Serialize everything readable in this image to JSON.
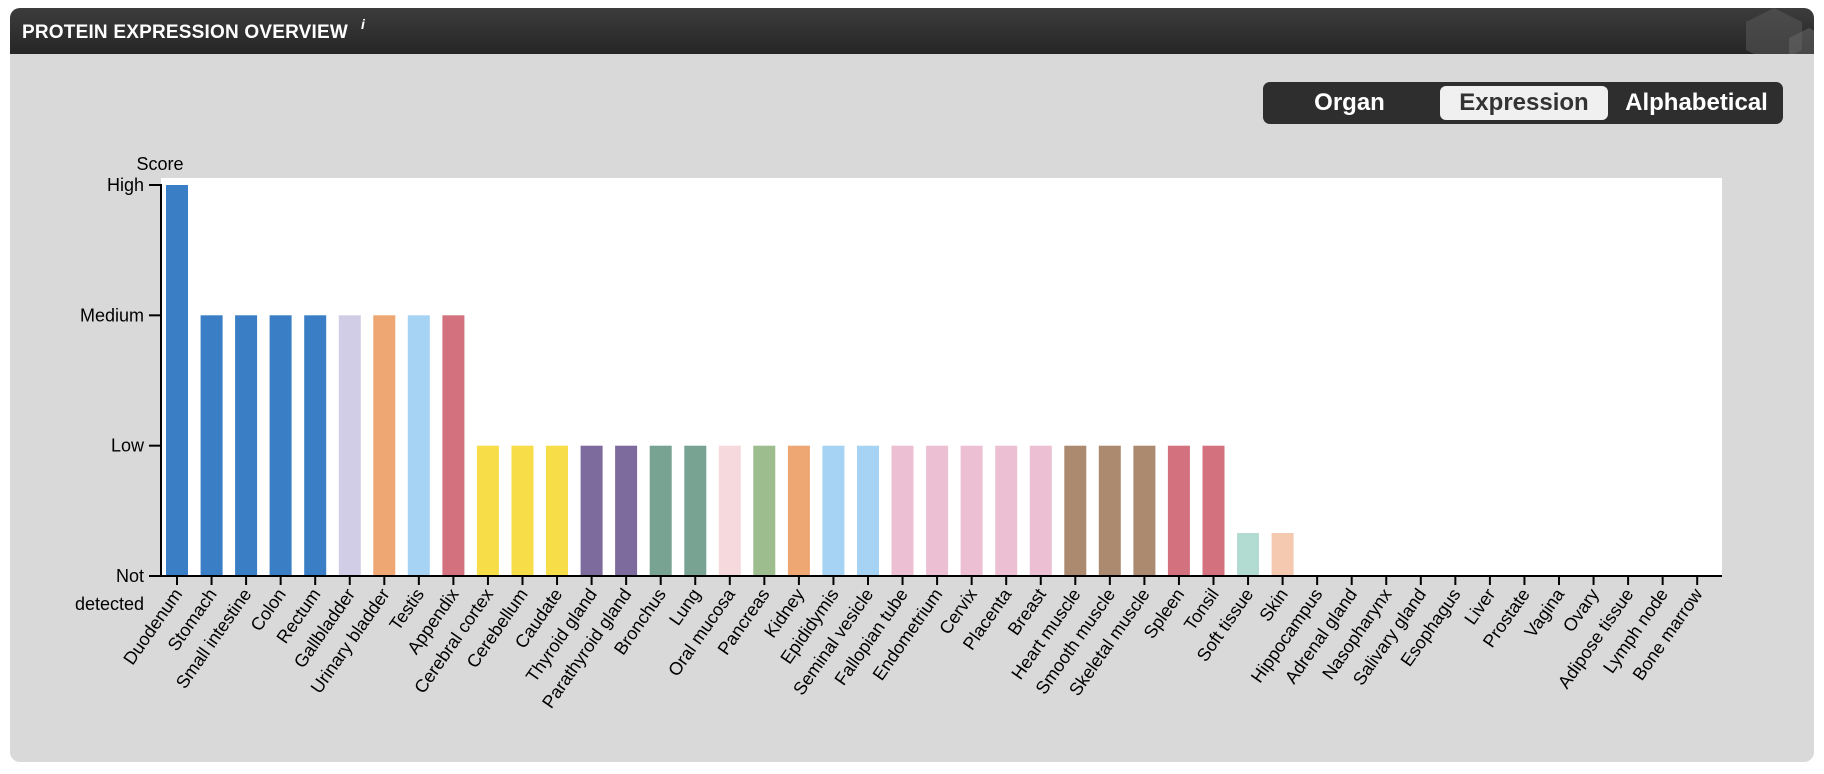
{
  "header": {
    "title": "PROTEIN EXPRESSION OVERVIEW",
    "info_icon": "i"
  },
  "sort_toggle": {
    "options": [
      "Organ",
      "Expression",
      "Alphabetical"
    ],
    "selected": "Expression"
  },
  "chart_data": {
    "type": "bar",
    "ylabel": "Score",
    "yticks": [
      "High",
      "Medium",
      "Low",
      "Not detected"
    ],
    "ylevels": {
      "High": 3,
      "Medium": 2,
      "Low": 1,
      "Not detected": 0
    },
    "ylim": [
      0,
      3
    ],
    "categories": [
      "Duodenum",
      "Stomach",
      "Small intestine",
      "Colon",
      "Rectum",
      "Gallbladder",
      "Urinary bladder",
      "Testis",
      "Appendix",
      "Cerebral cortex",
      "Cerebellum",
      "Caudate",
      "Thyroid gland",
      "Parathyroid gland",
      "Bronchus",
      "Lung",
      "Oral mucosa",
      "Pancreas",
      "Kidney",
      "Epididymis",
      "Seminal vesicle",
      "Fallopian tube",
      "Endometrium",
      "Cervix",
      "Placenta",
      "Breast",
      "Heart muscle",
      "Smooth muscle",
      "Skeletal muscle",
      "Spleen",
      "Tonsil",
      "Soft tissue",
      "Skin",
      "Hippocampus",
      "Adrenal gland",
      "Nasopharynx",
      "Salivary gland",
      "Esophagus",
      "Liver",
      "Prostate",
      "Vagina",
      "Ovary",
      "Adipose tissue",
      "Lymph node",
      "Bone marrow"
    ],
    "values": [
      3,
      2,
      2,
      2,
      2,
      2,
      2,
      2,
      2,
      1,
      1,
      1,
      1,
      1,
      1,
      1,
      1,
      1,
      1,
      1,
      1,
      1,
      1,
      1,
      1,
      1,
      1,
      1,
      1,
      1,
      1,
      0.33,
      0.33,
      0,
      0,
      0,
      0,
      0,
      0,
      0,
      0,
      0,
      0,
      0,
      0
    ],
    "colors": [
      "#3a7ec6",
      "#3a7ec6",
      "#3a7ec6",
      "#3a7ec6",
      "#3a7ec6",
      "#d2cde6",
      "#eea672",
      "#a6d3f3",
      "#d3717f",
      "#f7de49",
      "#f7de49",
      "#f7de49",
      "#7d6b9d",
      "#7d6b9d",
      "#78a393",
      "#78a393",
      "#f5d9dc",
      "#9dbd8e",
      "#eea672",
      "#a6d3f3",
      "#a6d3f3",
      "#edbfd3",
      "#edbfd3",
      "#edbfd3",
      "#edbfd3",
      "#edbfd3",
      "#ac8a70",
      "#ac8a70",
      "#ac8a70",
      "#d3717f",
      "#d3717f",
      "#b2dcd2",
      "#f5c8b0",
      "#cccccc",
      "#cccccc",
      "#cccccc",
      "#cccccc",
      "#cccccc",
      "#cccccc",
      "#cccccc",
      "#cccccc",
      "#cccccc",
      "#cccccc",
      "#cccccc",
      "#cccccc"
    ],
    "grid": false,
    "legend": "none"
  }
}
